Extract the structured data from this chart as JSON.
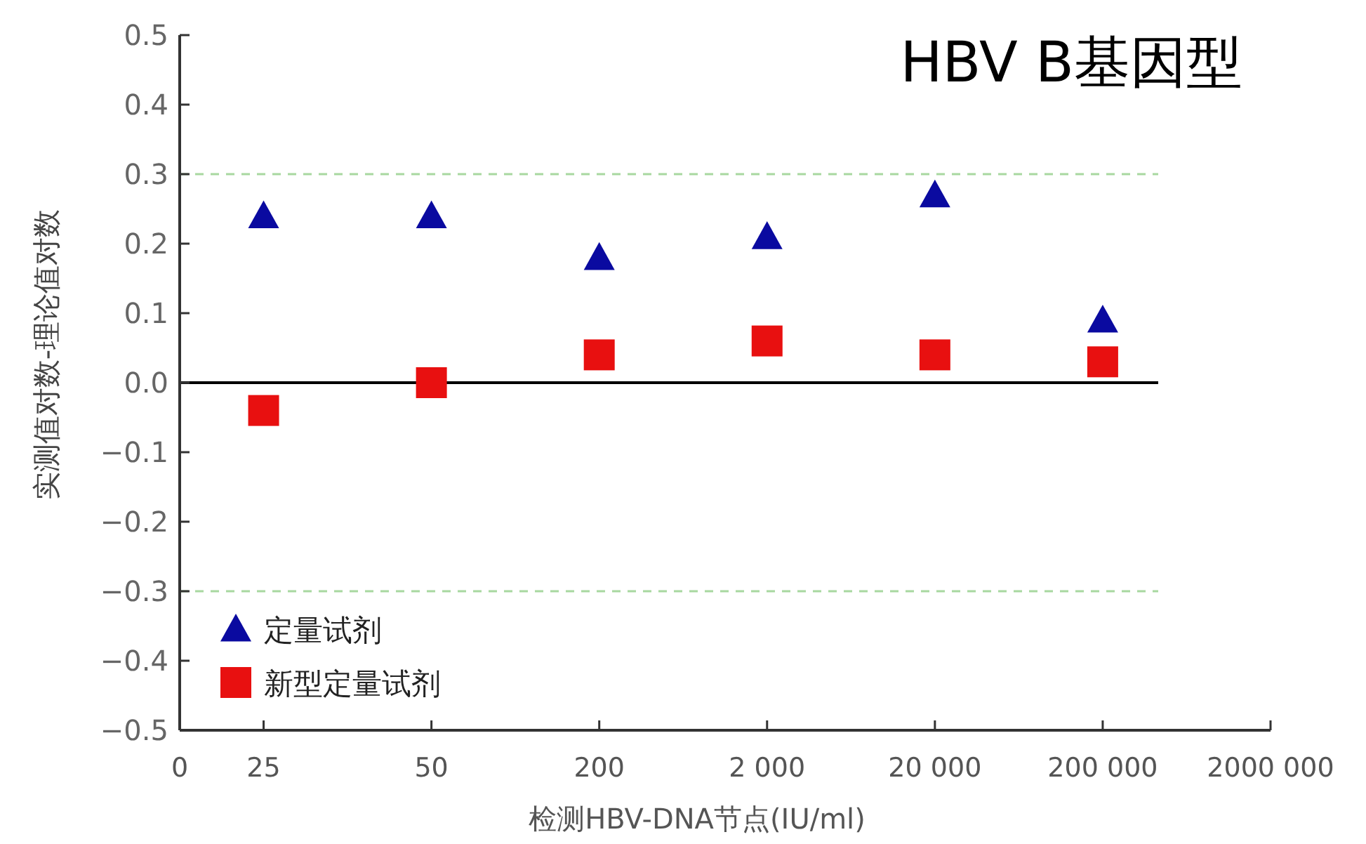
{
  "chart_data": {
    "type": "scatter",
    "title": "HBV B基因型",
    "xlabel": "检测HBV-DNA节点(IU/ml)",
    "ylabel": "实测值对数-理论值对数",
    "categories": [
      "0",
      "25",
      "50",
      "200",
      "2 000",
      "20 000",
      "200 000",
      "2000 000"
    ],
    "series": [
      {
        "name": "定量试剂",
        "color": "#0a0aa0",
        "marker": "triangle",
        "values": [
          null,
          0.24,
          0.24,
          0.18,
          0.21,
          0.27,
          0.09,
          null
        ]
      },
      {
        "name": "新型定量试剂",
        "color": "#e81010",
        "marker": "square",
        "values": [
          null,
          -0.04,
          0.0,
          0.04,
          0.06,
          0.04,
          0.03,
          null
        ]
      }
    ],
    "ylim": [
      -0.5,
      0.5
    ],
    "yticks": [
      {
        "value": -0.5,
        "label": "−0.5"
      },
      {
        "value": -0.4,
        "label": "−0.4"
      },
      {
        "value": -0.3,
        "label": "−0.3"
      },
      {
        "value": -0.2,
        "label": "−0.2"
      },
      {
        "value": -0.1,
        "label": "−0.1"
      },
      {
        "value": 0,
        "label": "0.0"
      },
      {
        "value": 0.1,
        "label": "0.1"
      },
      {
        "value": 0.2,
        "label": "0.2"
      },
      {
        "value": 0.3,
        "label": "0.3"
      },
      {
        "value": 0.4,
        "label": "0.4"
      },
      {
        "value": 0.5,
        "label": "0.5"
      }
    ],
    "ref_lines": [
      {
        "axis": "y",
        "value": 0.3,
        "color": "#a8d8a0",
        "line_style": "dashed"
      },
      {
        "axis": "y",
        "value": -0.3,
        "color": "#a8d8a0",
        "line_style": "dashed"
      },
      {
        "axis": "y",
        "value": 0,
        "color": "#000000",
        "line_style": "solid"
      }
    ],
    "legend": "bottom left",
    "grid": false
  }
}
